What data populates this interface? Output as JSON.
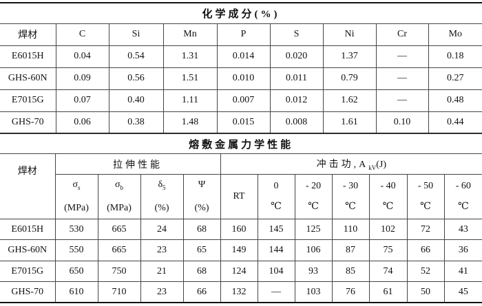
{
  "composition": {
    "title": "化学成分(%)",
    "headers": [
      "焊材",
      "C",
      "Si",
      "Mn",
      "P",
      "S",
      "Ni",
      "Cr",
      "Mo"
    ],
    "rows": [
      [
        "E6015H",
        "0.04",
        "0.54",
        "1.31",
        "0.014",
        "0.020",
        "1.37",
        "—",
        "0.18"
      ],
      [
        "GHS-60N",
        "0.09",
        "0.56",
        "1.51",
        "0.010",
        "0.011",
        "0.79",
        "—",
        "0.27"
      ],
      [
        "E7015G",
        "0.07",
        "0.40",
        "1.11",
        "0.007",
        "0.012",
        "1.62",
        "—",
        "0.48"
      ],
      [
        "GHS-70",
        "0.06",
        "0.38",
        "1.48",
        "0.015",
        "0.008",
        "1.61",
        "0.10",
        "0.44"
      ]
    ]
  },
  "mechanical": {
    "title": "熔敷金属力学性能",
    "material_header": "焊材",
    "tensile_group": "拉伸性能",
    "impact_group": "冲击功,A",
    "impact_sub": "kV",
    "impact_unit": "(J)",
    "tensile_headers": [
      {
        "sym": "σ",
        "sub": "s",
        "unit": "(MPa)"
      },
      {
        "sym": "σ",
        "sub": "b",
        "unit": "(MPa)"
      },
      {
        "sym": "δ",
        "sub": "5",
        "unit": "(%)"
      },
      {
        "sym": "Ψ",
        "sub": "",
        "unit": "(%)"
      }
    ],
    "impact_headers": [
      {
        "t": "RT",
        "unit": ""
      },
      {
        "t": "0",
        "unit": "℃"
      },
      {
        "t": "- 20",
        "unit": "℃"
      },
      {
        "t": "- 30",
        "unit": "℃"
      },
      {
        "t": "- 40",
        "unit": "℃"
      },
      {
        "t": "- 50",
        "unit": "℃"
      },
      {
        "t": "- 60",
        "unit": "℃"
      }
    ],
    "rows": [
      [
        "E6015H",
        "530",
        "665",
        "24",
        "68",
        "160",
        "145",
        "125",
        "110",
        "102",
        "72",
        "43"
      ],
      [
        "GHS-60N",
        "550",
        "665",
        "23",
        "65",
        "149",
        "144",
        "106",
        "87",
        "75",
        "66",
        "36"
      ],
      [
        "E7015G",
        "650",
        "750",
        "21",
        "68",
        "124",
        "104",
        "93",
        "85",
        "74",
        "52",
        "41"
      ],
      [
        "GHS-70",
        "610",
        "710",
        "23",
        "66",
        "132",
        "—",
        "103",
        "76",
        "61",
        "50",
        "45"
      ]
    ]
  }
}
